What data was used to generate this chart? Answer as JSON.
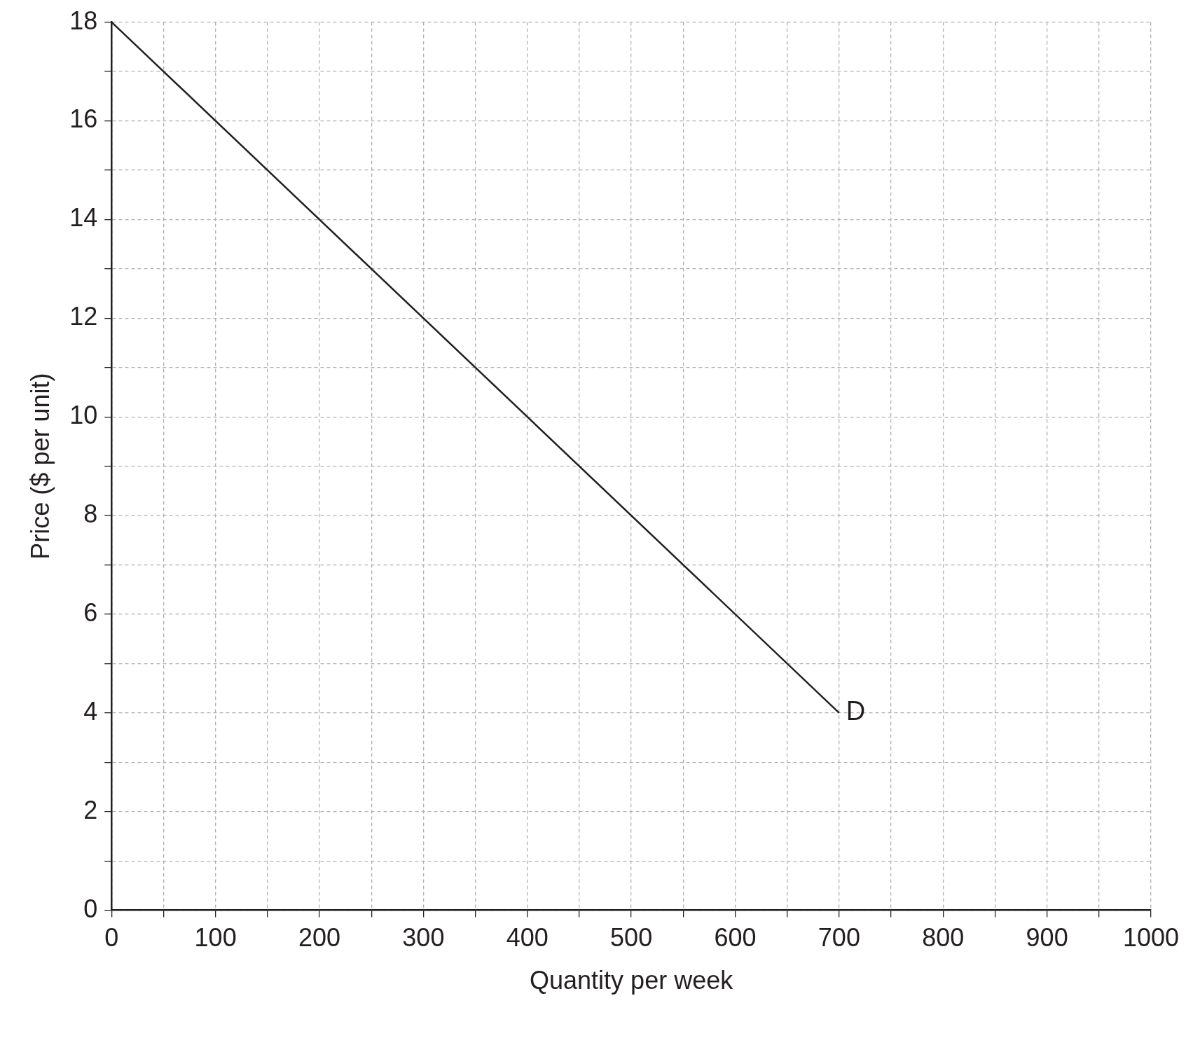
{
  "chart_data": {
    "type": "line",
    "xlabel": "Quantity per week",
    "ylabel": "Price ($ per unit)",
    "x": [
      0,
      700
    ],
    "series": [
      {
        "color": "#231f20",
        "values": [
          18,
          4
        ]
      }
    ],
    "xlim": [
      0,
      1000
    ],
    "xticks": [
      0,
      {
        "value": 50,
        "label": null
      },
      100,
      {
        "value": 150,
        "label": null
      },
      200,
      {
        "value": 250,
        "label": null
      },
      300,
      {
        "value": 350,
        "label": null
      },
      400,
      {
        "value": 450,
        "label": null
      },
      500,
      {
        "value": 550,
        "label": null
      },
      600,
      {
        "value": 650,
        "label": null
      },
      700,
      {
        "value": 750,
        "label": null
      },
      800,
      {
        "value": 850,
        "label": null
      },
      900,
      {
        "value": 950,
        "label": null
      },
      1000
    ],
    "ylim": [
      0,
      18
    ],
    "yticks": [
      0,
      {
        "value": 1,
        "label": null
      },
      2,
      {
        "value": 3,
        "label": null
      },
      4,
      {
        "value": 5,
        "label": null
      },
      6,
      {
        "value": 7,
        "label": null
      },
      8,
      {
        "value": 9,
        "label": null
      },
      10,
      {
        "value": 11,
        "label": null
      },
      12,
      {
        "value": 13,
        "label": null
      },
      14,
      {
        "value": 15,
        "label": null
      },
      16,
      {
        "value": 17,
        "label": null
      },
      18
    ],
    "annotations": [
      {
        "text": "D",
        "x": 700,
        "y": 4
      }
    ],
    "grid": true,
    "legend": false,
    "marker": "none",
    "line_style": "solid"
  }
}
